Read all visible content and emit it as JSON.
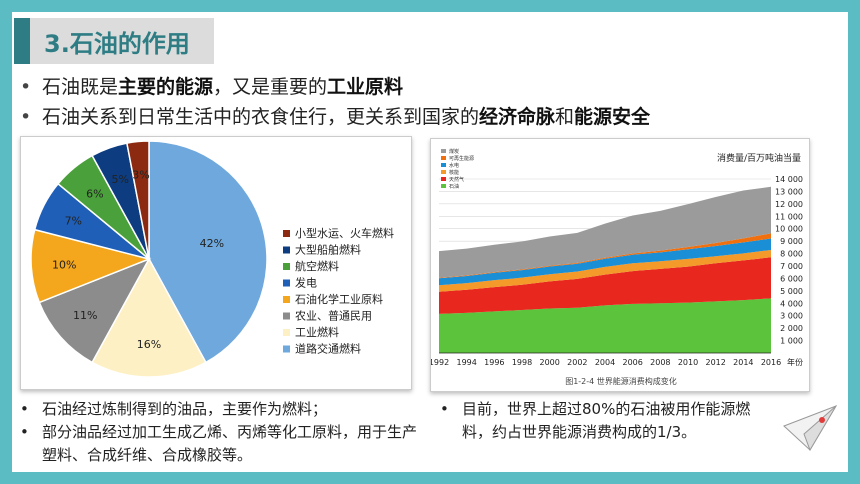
{
  "title": "3.石油的作用",
  "bullets_top": [
    {
      "parts": [
        {
          "t": "石油既是",
          "b": false
        },
        {
          "t": "主要的能源",
          "b": true
        },
        {
          "t": "，又是重要的",
          "b": false
        },
        {
          "t": "工业原料",
          "b": true
        }
      ]
    },
    {
      "parts": [
        {
          "t": "石油关系到日常生活中的衣食住行，更关系到国家的",
          "b": false
        },
        {
          "t": "经济命脉",
          "b": true
        },
        {
          "t": "和",
          "b": false
        },
        {
          "t": "能源安全",
          "b": true
        }
      ]
    }
  ],
  "bullets_bottom_left": [
    "石油经过炼制得到的油品，主要作为燃料；",
    "部分油品经过加工生成乙烯、丙烯等化工原料，用于生产塑料、合成纤维、合成橡胶等。"
  ],
  "bullets_bottom_right": [
    "目前，世界上超过80%的石油被用作能源燃料，约占世界能源消费构成的1/3。"
  ],
  "bullet_symbol": "•",
  "chart_data": [
    {
      "type": "pie",
      "slices": [
        {
          "label": "道路交通燃料",
          "value": 42,
          "text": "42%",
          "color": "#6fa8dc"
        },
        {
          "label": "工业燃料",
          "value": 16,
          "text": "16%",
          "color": "#fdf0c4"
        },
        {
          "label": "农业、普通民用",
          "value": 11,
          "text": "11%",
          "color": "#8c8c8c"
        },
        {
          "label": "石油化学工业原料",
          "value": 10,
          "text": "10%",
          "color": "#f4a61c"
        },
        {
          "label": "发电",
          "value": 7,
          "text": "7%",
          "color": "#1f5fb8"
        },
        {
          "label": "航空燃料",
          "value": 6,
          "text": "6%",
          "color": "#4aa03a"
        },
        {
          "label": "大型船舶燃料",
          "value": 5,
          "text": "5%",
          "color": "#0d3d80"
        },
        {
          "label": "小型水运、火车燃料",
          "value": 3,
          "text": "3%",
          "color": "#8b2a10"
        }
      ],
      "legend_order": [
        "小型水运、火车燃料",
        "大型船舶燃料",
        "航空燃料",
        "发电",
        "石油化学工业原料",
        "农业、普通民用",
        "工业燃料",
        "道路交通燃料"
      ],
      "legend_position": "right"
    },
    {
      "type": "area",
      "ylabel": "消费量/百万吨油当量",
      "caption": "图1-2-4  世界能源消费构成变化",
      "x": [
        1992,
        1994,
        1996,
        1998,
        2000,
        2002,
        2004,
        2006,
        2008,
        2010,
        2012,
        2014,
        2016
      ],
      "xtick_suffix": "年份",
      "ylim": [
        0,
        14000
      ],
      "yticks": [
        "1 000",
        "2 000",
        "3 000",
        "4 000",
        "5 000",
        "6 000",
        "7 000",
        "8 000",
        "9 000",
        "10 000",
        "11 000",
        "12 000",
        "13 000",
        "14 000"
      ],
      "series": [
        {
          "name": "石油",
          "color": "#5cc43c",
          "values": [
            3150,
            3230,
            3350,
            3460,
            3580,
            3640,
            3830,
            3950,
            4000,
            4050,
            4150,
            4250,
            4400
          ]
        },
        {
          "name": "天然气",
          "color": "#e8281e",
          "values": [
            1780,
            1860,
            1950,
            2030,
            2180,
            2320,
            2480,
            2640,
            2770,
            2900,
            3070,
            3200,
            3300
          ]
        },
        {
          "name": "核能",
          "color": "#f39a2a",
          "values": [
            520,
            530,
            560,
            570,
            580,
            600,
            620,
            630,
            610,
            620,
            560,
            570,
            590
          ]
        },
        {
          "name": "水电",
          "color": "#1b8fd6",
          "values": [
            560,
            580,
            600,
            610,
            620,
            620,
            650,
            690,
            720,
            780,
            830,
            880,
            920
          ]
        },
        {
          "name": "可再生能源",
          "color": "#f07010",
          "values": [
            40,
            45,
            50,
            55,
            60,
            70,
            80,
            100,
            140,
            180,
            240,
            320,
            420
          ]
        },
        {
          "name": "煤炭",
          "color": "#9b9b9b",
          "values": [
            2150,
            2150,
            2200,
            2250,
            2350,
            2420,
            2750,
            3050,
            3200,
            3450,
            3700,
            3850,
            3750
          ]
        }
      ],
      "legend_position": "top-left"
    }
  ]
}
